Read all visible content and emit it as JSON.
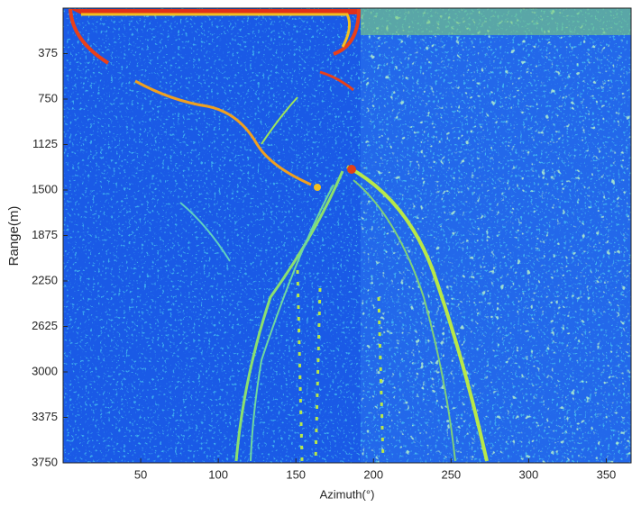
{
  "chart_data": {
    "type": "heatmap",
    "x_label": "Azimuth(°)",
    "y_label": "Range(m)",
    "xlim": [
      0,
      366
    ],
    "xticks": [
      50,
      100,
      150,
      200,
      250,
      300,
      350
    ],
    "ylim": [
      0,
      3750
    ],
    "yticks": [
      375,
      750,
      1125,
      1500,
      1875,
      2250,
      2625,
      3000,
      3375,
      3750
    ]
  }
}
